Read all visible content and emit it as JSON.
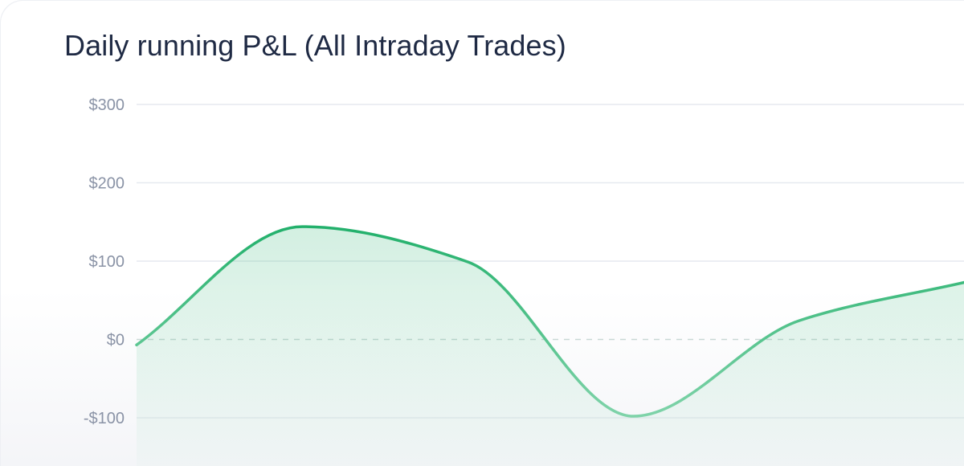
{
  "chart_data": {
    "type": "area",
    "title": "Daily running P&L (All Intraday Trades)",
    "xlabel": "",
    "ylabel": "",
    "y_ticks": [
      {
        "value": 300,
        "label": "$300"
      },
      {
        "value": 200,
        "label": "$200"
      },
      {
        "value": 100,
        "label": "$100"
      },
      {
        "value": 0,
        "label": "$0"
      },
      {
        "value": -100,
        "label": "-$100"
      }
    ],
    "ylim": [
      -100,
      300
    ],
    "grid": true,
    "zero_line": "dashed",
    "series": [
      {
        "x": [
          0,
          1,
          2,
          3,
          4,
          5
        ],
        "values": [
          -7,
          144,
          99,
          -98,
          24,
          73
        ]
      }
    ],
    "colors": {
      "line": "#22b06b",
      "fill": "#22b06b",
      "grid": "#e6e9ef",
      "zero_line": "#c9d8d6",
      "tick_text": "#8a93a6",
      "title_text": "#1f2a44"
    }
  }
}
